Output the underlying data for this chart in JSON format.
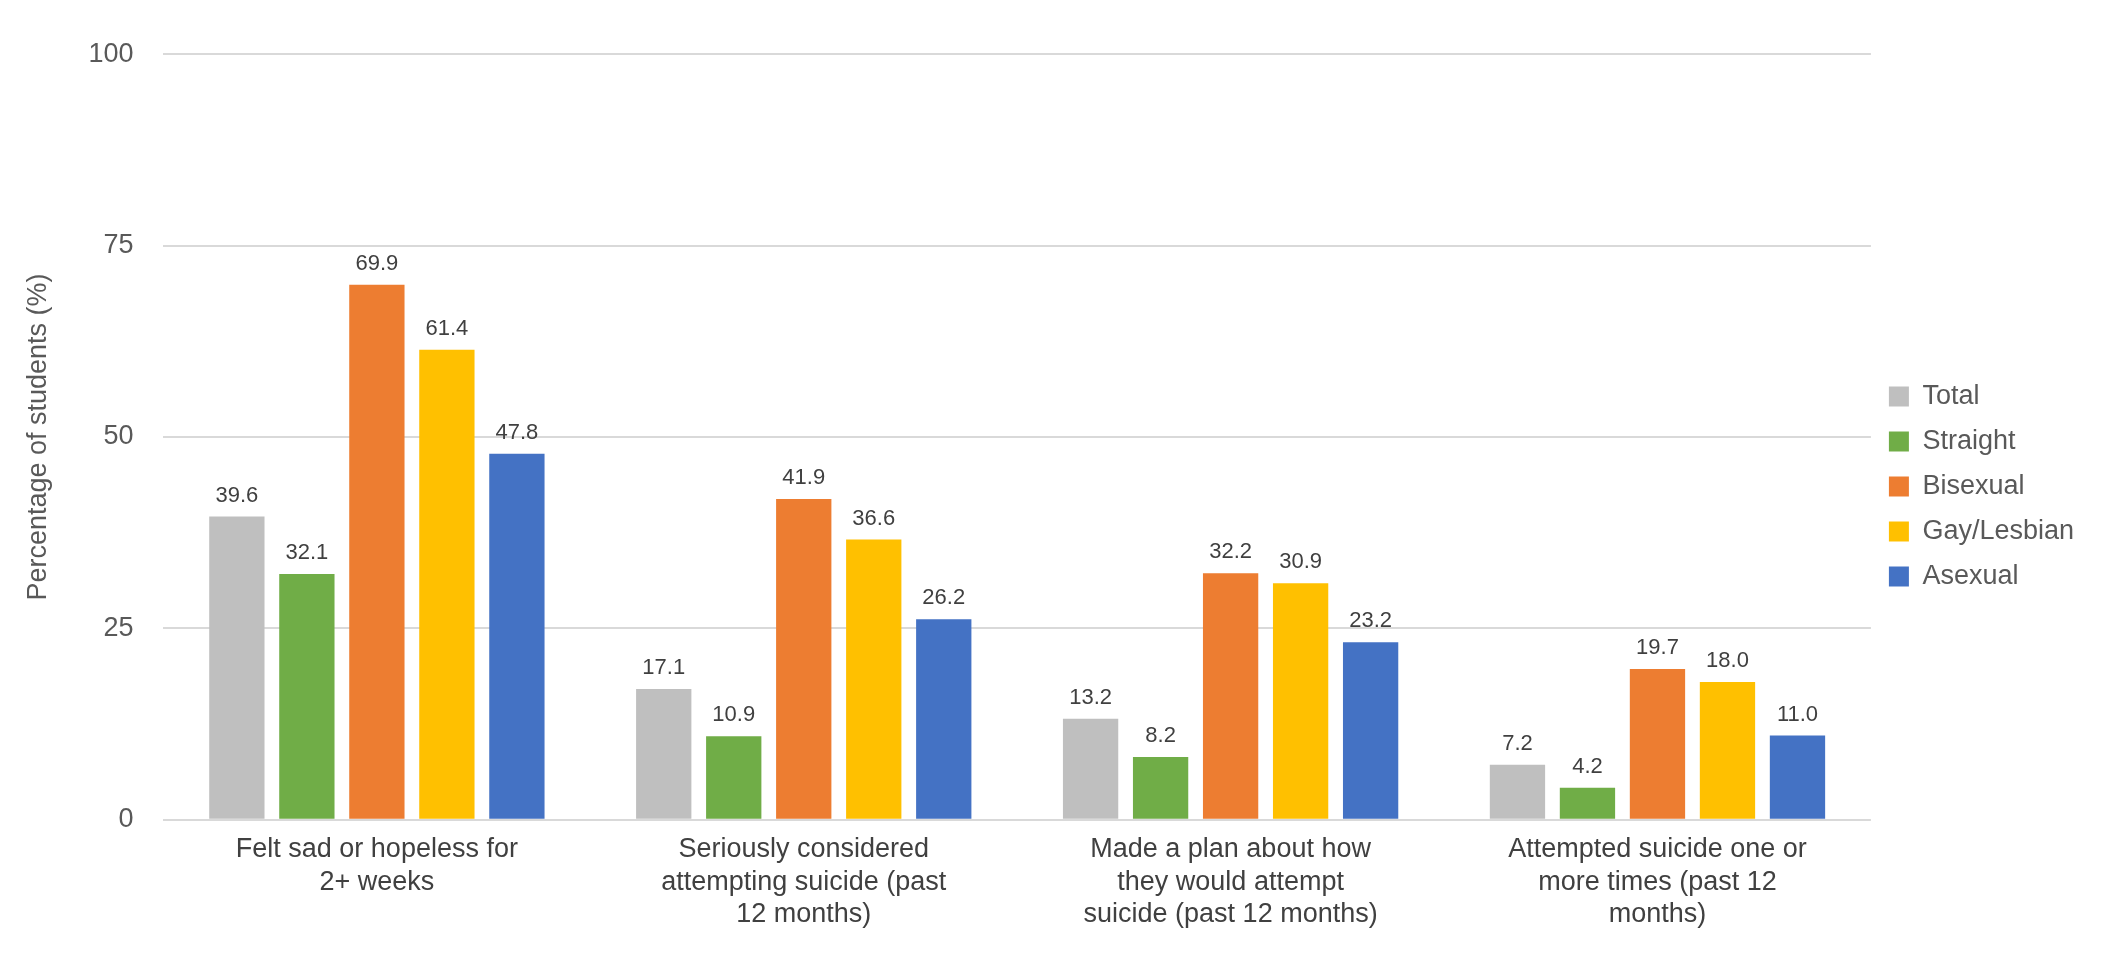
{
  "chart_data": {
    "type": "bar",
    "ylabel": "Percentage of students (%)",
    "categories": [
      "Felt sad or hopeless for 2+ weeks",
      "Seriously considered attempting suicide (past 12 months)",
      "Made a plan about how they would attempt suicide (past 12 months)",
      "Attempted suicide one or more times (past 12 months)"
    ],
    "series": [
      {
        "name": "Total",
        "color": "#bfbfbf",
        "values": [
          39.6,
          17.1,
          13.2,
          7.2
        ],
        "value_labels": [
          "39.6",
          "17.1",
          "13.2",
          "7.2"
        ]
      },
      {
        "name": "Straight",
        "color": "#70ad47",
        "values": [
          32.1,
          10.9,
          8.2,
          4.2
        ],
        "value_labels": [
          "32.1",
          "10.9",
          "8.2",
          "4.2"
        ]
      },
      {
        "name": "Bisexual",
        "color": "#ed7d31",
        "values": [
          69.9,
          41.9,
          32.2,
          19.7
        ],
        "value_labels": [
          "69.9",
          "41.9",
          "32.2",
          "19.7"
        ]
      },
      {
        "name": "Gay/Lesbian",
        "color": "#ffc000",
        "values": [
          61.4,
          36.6,
          30.9,
          18.0
        ],
        "value_labels": [
          "61.4",
          "36.6",
          "30.9",
          "18.0"
        ]
      },
      {
        "name": "Asexual",
        "color": "#4472c4",
        "values": [
          47.8,
          26.2,
          23.2,
          11.0
        ],
        "value_labels": [
          "47.8",
          "26.2",
          "23.2",
          "11.0"
        ]
      }
    ],
    "ylim": [
      0,
      100
    ],
    "yticks": [
      0,
      25,
      50,
      75,
      100
    ],
    "grid": "y",
    "legend": "right"
  }
}
